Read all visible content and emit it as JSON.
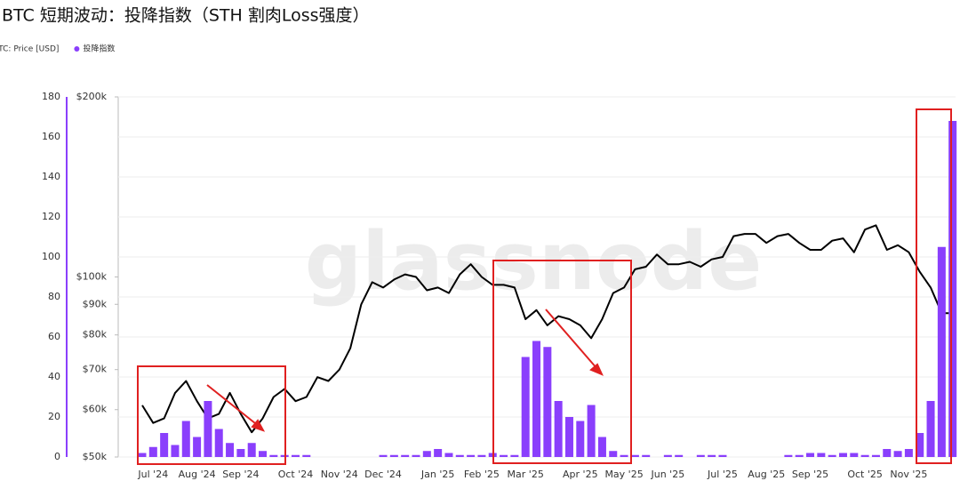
{
  "chart_data": {
    "type": "combo",
    "title": "BTC 短期波动：投降指数（STH 割肉Loss强度）",
    "watermark": "glassnode",
    "categories": [
      null,
      "Jul '24",
      null,
      null,
      null,
      "Aug '24",
      null,
      null,
      null,
      "Sep '24",
      null,
      null,
      null,
      null,
      "Oct '24",
      null,
      null,
      null,
      "Nov '24",
      null,
      null,
      null,
      "Dec '24",
      null,
      null,
      null,
      null,
      "Jan '25",
      null,
      null,
      null,
      "Feb '25",
      null,
      null,
      null,
      "Mar '25",
      null,
      null,
      null,
      null,
      "Apr '25",
      null,
      null,
      null,
      "May '25",
      null,
      null,
      null,
      "Jun '25",
      null,
      null,
      null,
      null,
      "Jul '25",
      null,
      null,
      null,
      "Aug '25",
      null,
      null,
      null,
      "Sep '25",
      null,
      null,
      null,
      null,
      "Oct '25",
      null,
      null,
      null,
      "Nov '25",
      null,
      null,
      null,
      null
    ],
    "series": [
      {
        "name": "BTC: Price [USD]",
        "type": "line",
        "axis": "y2",
        "color": "#000000",
        "values": [
          61000,
          57000,
          58000,
          64000,
          67000,
          62000,
          58000,
          59000,
          64000,
          59000,
          55000,
          58000,
          63000,
          65000,
          62000,
          63000,
          68000,
          67000,
          70000,
          76000,
          90000,
          98000,
          96000,
          99000,
          101000,
          100000,
          95000,
          96000,
          94000,
          101000,
          105000,
          100000,
          97000,
          97000,
          96000,
          85000,
          88000,
          83000,
          86000,
          85000,
          83000,
          79000,
          85000,
          94000,
          96000,
          103000,
          104000,
          109000,
          105000,
          105000,
          106000,
          104000,
          107000,
          108000,
          117000,
          118000,
          118000,
          114000,
          117000,
          118000,
          114000,
          111000,
          111000,
          115000,
          116000,
          110000,
          120000,
          122000,
          111000,
          113000,
          110000,
          102000,
          96000,
          87000,
          87000
        ]
      },
      {
        "name": "投降指数",
        "type": "bar",
        "color": "#8a3ffc",
        "values": [
          2,
          5,
          12,
          6,
          18,
          10,
          28,
          14,
          7,
          4,
          7,
          3,
          1,
          1,
          1,
          1,
          0,
          0,
          0,
          0,
          0,
          0,
          1,
          1,
          1,
          1,
          3,
          4,
          2,
          1,
          1,
          1,
          2,
          1,
          1,
          50,
          58,
          55,
          28,
          20,
          18,
          26,
          10,
          3,
          1,
          1,
          1,
          0,
          1,
          1,
          0,
          1,
          1,
          1,
          0,
          0,
          0,
          0,
          0,
          1,
          1,
          2,
          2,
          1,
          2,
          2,
          1,
          1,
          4,
          3,
          4,
          12,
          28,
          105,
          168
        ]
      }
    ],
    "ylim": [
      0,
      180
    ],
    "yticks": [
      0,
      20,
      40,
      60,
      80,
      100,
      120,
      140,
      160,
      180
    ],
    "y2lim": [
      50000,
      200000
    ],
    "y2scale": "log",
    "y2ticks": [
      {
        "value": 50000,
        "label": "$50k"
      },
      {
        "value": 60000,
        "label": "$60k"
      },
      {
        "value": 70000,
        "label": "$70k"
      },
      {
        "value": 80000,
        "label": "$80k"
      },
      {
        "value": 90000,
        "label": "$90k"
      },
      {
        "value": 100000,
        "label": "$100k"
      },
      {
        "value": 200000,
        "label": "$200k"
      }
    ],
    "grid": true
  }
}
